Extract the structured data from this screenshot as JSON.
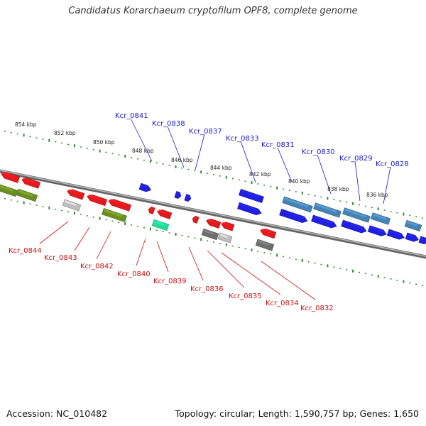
{
  "title": "Candidatus Korarchaeum cryptofilum OPF8, complete genome",
  "footer": {
    "accession": "Accession: NC_010482",
    "summary": "Topology: circular; Length: 1,590,757 bp; Genes: 1,650"
  },
  "colors": {
    "forward_label": "#1a1acc",
    "reverse_label": "#cc1111",
    "tick": "#2e8b2e",
    "backbone": "#8a8a8a",
    "gene_red": "#e41a1c",
    "gene_blue": "#1f1fe0",
    "gene_steel": "#4682b4",
    "gene_olive": "#6b8e23",
    "gene_grey_light": "#bdbdbd",
    "gene_grey_dark": "#6e6e6e",
    "gene_teal": "#22dd99"
  },
  "kbp_labels": [
    "854 kbp",
    "852 kbp",
    "850 kbp",
    "848 kbp",
    "846 kbp",
    "844 kbp",
    "842 kbp",
    "840 kbp",
    "838 kbp",
    "836 kbp"
  ],
  "forward_genes": [
    "Kcr_0841",
    "Kcr_0838",
    "Kcr_0837",
    "Kcr_0833",
    "Kcr_0831",
    "Kcr_0830",
    "Kcr_0829",
    "Kcr_0828"
  ],
  "reverse_genes": [
    "Kcr_0844",
    "Kcr_0843",
    "Kcr_0842",
    "Kcr_0840",
    "Kcr_0839",
    "Kcr_0836",
    "Kcr_0835",
    "Kcr_0834",
    "Kcr_0832"
  ]
}
